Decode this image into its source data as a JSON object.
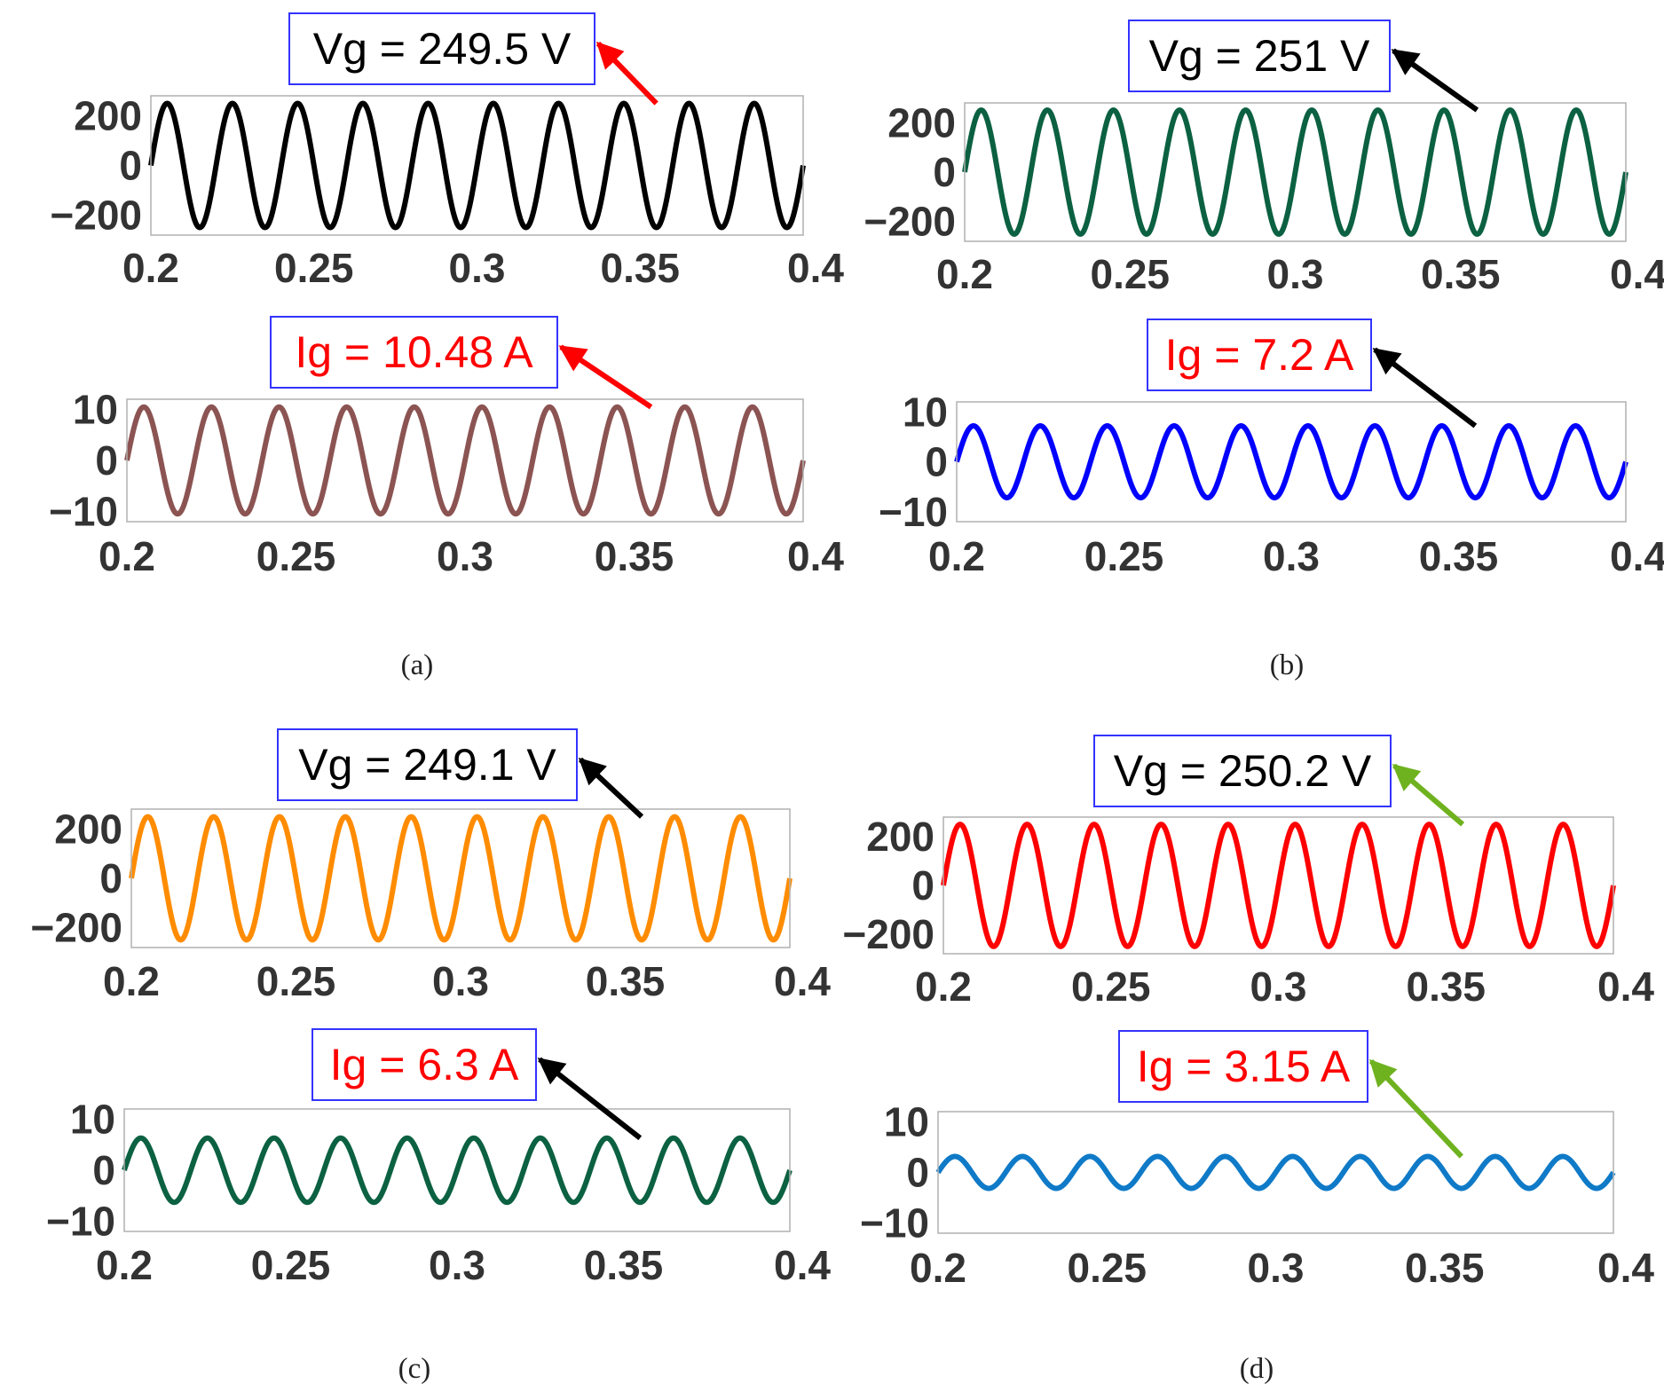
{
  "chart_data": [
    {
      "panel": "(a)",
      "caption": "(a)",
      "plots": [
        {
          "type": "line",
          "quantity": "Vg",
          "series": [
            {
              "name": "Vg",
              "amplitude": 249.5,
              "frequency_hz": 50,
              "phase_deg": 0,
              "color": "#000000"
            }
          ],
          "xlim": [
            0.2,
            0.4
          ],
          "ylim": [
            -280,
            280
          ],
          "xticks": [
            "0.2",
            "0.25",
            "0.3",
            "0.35",
            "0.4"
          ],
          "yticks": [
            "200",
            "0",
            "−200"
          ],
          "ytick_values": [
            200,
            0,
            -200
          ],
          "annotation": {
            "text": "Vg = 249.5 V",
            "text_color": "#000000",
            "arrow_color": "#ff0000",
            "target_x": 0.355
          }
        },
        {
          "type": "line",
          "quantity": "Ig",
          "series": [
            {
              "name": "Ig",
              "amplitude": 10.48,
              "frequency_hz": 50,
              "phase_deg": 0,
              "color": "#8b5452"
            }
          ],
          "xlim": [
            0.2,
            0.4
          ],
          "ylim": [
            -12,
            12
          ],
          "xticks": [
            "0.2",
            "0.25",
            "0.3",
            "0.35",
            "0.4"
          ],
          "yticks": [
            "10",
            "0",
            "−10"
          ],
          "ytick_values": [
            10,
            0,
            -10
          ],
          "annotation": {
            "text": "Ig = 10.48 A",
            "text_color": "#ff0000",
            "arrow_color": "#ff0000",
            "target_x": 0.355
          }
        }
      ]
    },
    {
      "panel": "(b)",
      "caption": "(b)",
      "plots": [
        {
          "type": "line",
          "quantity": "Vg",
          "series": [
            {
              "name": "Vg",
              "amplitude": 251,
              "frequency_hz": 50,
              "phase_deg": 0,
              "color": "#0b6142"
            }
          ],
          "xlim": [
            0.2,
            0.4
          ],
          "ylim": [
            -280,
            280
          ],
          "xticks": [
            "0.2",
            "0.25",
            "0.3",
            "0.35",
            "0.4"
          ],
          "yticks": [
            "200",
            "0",
            "−200"
          ],
          "ytick_values": [
            200,
            0,
            -200
          ],
          "annotation": {
            "text": "Vg = 251 V",
            "text_color": "#000000",
            "arrow_color": "#000000",
            "target_x": 0.355
          }
        },
        {
          "type": "line",
          "quantity": "Ig",
          "series": [
            {
              "name": "Ig",
              "amplitude": 7.2,
              "frequency_hz": 50,
              "phase_deg": 0,
              "color": "#0000ff"
            }
          ],
          "xlim": [
            0.2,
            0.4
          ],
          "ylim": [
            -12,
            12
          ],
          "xticks": [
            "0.2",
            "0.25",
            "0.3",
            "0.35",
            "0.4"
          ],
          "yticks": [
            "10",
            "0",
            "−10"
          ],
          "ytick_values": [
            10,
            0,
            -10
          ],
          "annotation": {
            "text": "Ig = 7.2 A",
            "text_color": "#ff0000",
            "arrow_color": "#000000",
            "target_x": 0.355
          }
        }
      ]
    },
    {
      "panel": "(c)",
      "caption": "(c)",
      "plots": [
        {
          "type": "line",
          "quantity": "Vg",
          "series": [
            {
              "name": "Vg",
              "amplitude": 249.1,
              "frequency_hz": 50,
              "phase_deg": 0,
              "color": "#ff8c00"
            }
          ],
          "xlim": [
            0.2,
            0.4
          ],
          "ylim": [
            -280,
            280
          ],
          "xticks": [
            "0.2",
            "0.25",
            "0.3",
            "0.35",
            "0.4"
          ],
          "yticks": [
            "200",
            "0",
            "−200"
          ],
          "ytick_values": [
            200,
            0,
            -200
          ],
          "annotation": {
            "text": "Vg = 249.1 V",
            "text_color": "#000000",
            "arrow_color": "#000000",
            "target_x": 0.355
          }
        },
        {
          "type": "line",
          "quantity": "Ig",
          "series": [
            {
              "name": "Ig",
              "amplitude": 6.3,
              "frequency_hz": 50,
              "phase_deg": 0,
              "color": "#0b6142"
            }
          ],
          "xlim": [
            0.2,
            0.4
          ],
          "ylim": [
            -12,
            12
          ],
          "xticks": [
            "0.2",
            "0.25",
            "0.3",
            "0.35",
            "0.4"
          ],
          "yticks": [
            "10",
            "0",
            "−10"
          ],
          "ytick_values": [
            10,
            0,
            -10
          ],
          "annotation": {
            "text": "Ig = 6.3 A",
            "text_color": "#ff0000",
            "arrow_color": "#000000",
            "target_x": 0.355
          }
        }
      ]
    },
    {
      "panel": "(d)",
      "caption": "(d)",
      "plots": [
        {
          "type": "line",
          "quantity": "Vg",
          "series": [
            {
              "name": "Vg",
              "amplitude": 250.2,
              "frequency_hz": 50,
              "phase_deg": 0,
              "color": "#ff0000"
            }
          ],
          "xlim": [
            0.2,
            0.4
          ],
          "ylim": [
            -280,
            280
          ],
          "xticks": [
            "0.2",
            "0.25",
            "0.3",
            "0.35",
            "0.4"
          ],
          "yticks": [
            "200",
            "0",
            "−200"
          ],
          "ytick_values": [
            200,
            0,
            -200
          ],
          "annotation": {
            "text": "Vg = 250.2 V",
            "text_color": "#000000",
            "arrow_color": "#6fb21f",
            "target_x": 0.355
          }
        },
        {
          "type": "line",
          "quantity": "Ig",
          "series": [
            {
              "name": "Ig",
              "amplitude": 3.15,
              "frequency_hz": 50,
              "phase_deg": 0,
              "color": "#0f7ac7"
            }
          ],
          "xlim": [
            0.2,
            0.4
          ],
          "ylim": [
            -12,
            12
          ],
          "xticks": [
            "0.2",
            "0.25",
            "0.3",
            "0.35",
            "0.4"
          ],
          "yticks": [
            "10",
            "0",
            "−10"
          ],
          "ytick_values": [
            10,
            0,
            -10
          ],
          "annotation": {
            "text": "Ig = 3.15 A",
            "text_color": "#ff0000",
            "arrow_color": "#6fb21f",
            "target_x": 0.355
          }
        }
      ]
    }
  ]
}
